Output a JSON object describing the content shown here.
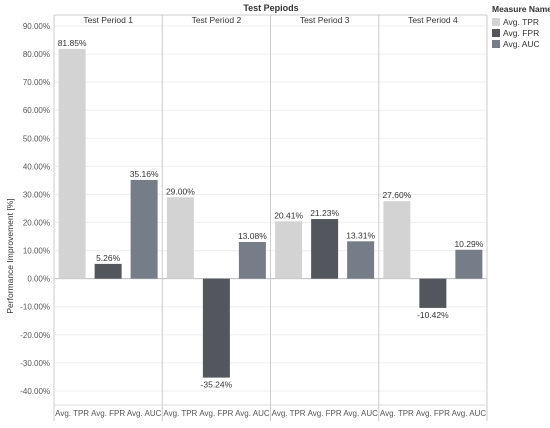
{
  "chart_data": {
    "type": "bar",
    "title": "Test Pepiods",
    "ylabel": "Performance Improvement [%]",
    "xlabel": "",
    "ylim": [
      -45,
      90
    ],
    "yticks": [
      90,
      80,
      70,
      60,
      50,
      40,
      30,
      20,
      10,
      0,
      -10,
      -20,
      -30,
      -40
    ],
    "ytick_labels": [
      "90.00%",
      "80.00%",
      "70.00%",
      "60.00%",
      "50.00%",
      "40.00%",
      "30.00%",
      "20.00%",
      "10.00%",
      "0.00%",
      "-10.00%",
      "-20.00%",
      "-30.00%",
      "-40.00%"
    ],
    "grid": true,
    "legend": {
      "title": "Measure Names",
      "placement": "top-right",
      "items": [
        "Avg. TPR",
        "Avg. FPR",
        "Avg. AUC"
      ]
    },
    "categories": [
      "Avg. TPR",
      "Avg. FPR",
      "Avg. AUC"
    ],
    "series_colors": [
      "#d3d3d3",
      "#53565c",
      "#777d88"
    ],
    "panels": [
      {
        "name": "Test Period 1",
        "values": [
          81.85,
          5.26,
          35.16
        ],
        "labels": [
          "81.85%",
          "5.26%",
          "35.16%"
        ]
      },
      {
        "name": "Test Period 2",
        "values": [
          29.0,
          -35.24,
          13.08
        ],
        "labels": [
          "29.00%",
          "-35.24%",
          "13.08%"
        ]
      },
      {
        "name": "Test Period 3",
        "values": [
          20.41,
          21.23,
          13.31
        ],
        "labels": [
          "20.41%",
          "21.23%",
          "13.31%"
        ]
      },
      {
        "name": "Test Period 4",
        "values": [
          27.6,
          -10.42,
          10.29
        ],
        "labels": [
          "27.60%",
          "-10.42%",
          "10.29%"
        ]
      }
    ]
  }
}
